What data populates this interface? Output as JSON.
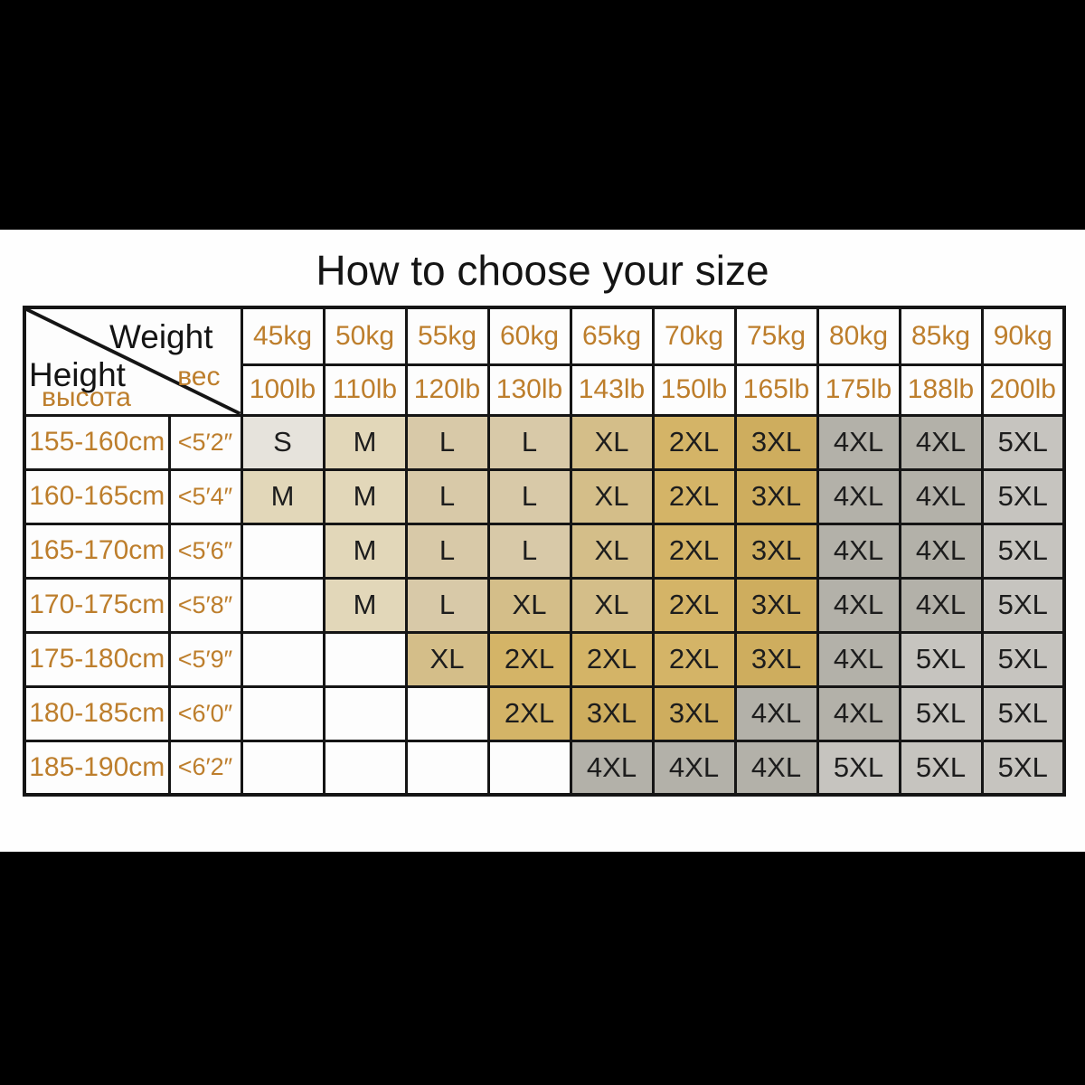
{
  "title": "How to choose your size",
  "colors": {
    "orange_text": "#bd7e2c",
    "border": "#151515",
    "cell_text": "#1d1d1d",
    "background_bars": "#000000",
    "content_background": "#fefefe",
    "size_fills": {
      "S": "#e6e3dc",
      "M": "#e2d7b9",
      "L": "#d8c9a8",
      "XL": "#d4be89",
      "2XL": "#d4b467",
      "3XL": "#cead5e",
      "4XL": "#b3b1a9",
      "5XL": "#c6c4bf",
      "": "#fdfdfd"
    }
  },
  "chart_data": {
    "type": "table",
    "title": "How to choose your size",
    "corner": {
      "weight_en": "Weight",
      "weight_ru": "вес",
      "height_en": "Height",
      "height_ru": "высота"
    },
    "weights_kg": [
      "45kg",
      "50kg",
      "55kg",
      "60kg",
      "65kg",
      "70kg",
      "75kg",
      "80kg",
      "85kg",
      "90kg"
    ],
    "weights_lb": [
      "100lb",
      "110lb",
      "120lb",
      "130lb",
      "143lb",
      "150lb",
      "165lb",
      "175lb",
      "188lb",
      "200lb"
    ],
    "rows": [
      {
        "height_cm": "155-160cm",
        "height_in": "<5′2″",
        "sizes": [
          "S",
          "M",
          "L",
          "L",
          "XL",
          "2XL",
          "3XL",
          "4XL",
          "4XL",
          "5XL"
        ]
      },
      {
        "height_cm": "160-165cm",
        "height_in": "<5′4″",
        "sizes": [
          "M",
          "M",
          "L",
          "L",
          "XL",
          "2XL",
          "3XL",
          "4XL",
          "4XL",
          "5XL"
        ]
      },
      {
        "height_cm": "165-170cm",
        "height_in": "<5′6″",
        "sizes": [
          "",
          "M",
          "L",
          "L",
          "XL",
          "2XL",
          "3XL",
          "4XL",
          "4XL",
          "5XL"
        ]
      },
      {
        "height_cm": "170-175cm",
        "height_in": "<5′8″",
        "sizes": [
          "",
          "M",
          "L",
          "XL",
          "XL",
          "2XL",
          "3XL",
          "4XL",
          "4XL",
          "5XL"
        ]
      },
      {
        "height_cm": "175-180cm",
        "height_in": "<5′9″",
        "sizes": [
          "",
          "",
          "XL",
          "2XL",
          "2XL",
          "2XL",
          "3XL",
          "4XL",
          "5XL",
          "5XL"
        ]
      },
      {
        "height_cm": "180-185cm",
        "height_in": "<6′0″",
        "sizes": [
          "",
          "",
          "",
          "2XL",
          "3XL",
          "3XL",
          "4XL",
          "4XL",
          "5XL",
          "5XL"
        ]
      },
      {
        "height_cm": "185-190cm",
        "height_in": "<6′2″",
        "sizes": [
          "",
          "",
          "",
          "",
          "4XL",
          "4XL",
          "4XL",
          "5XL",
          "5XL",
          "5XL"
        ]
      }
    ]
  }
}
